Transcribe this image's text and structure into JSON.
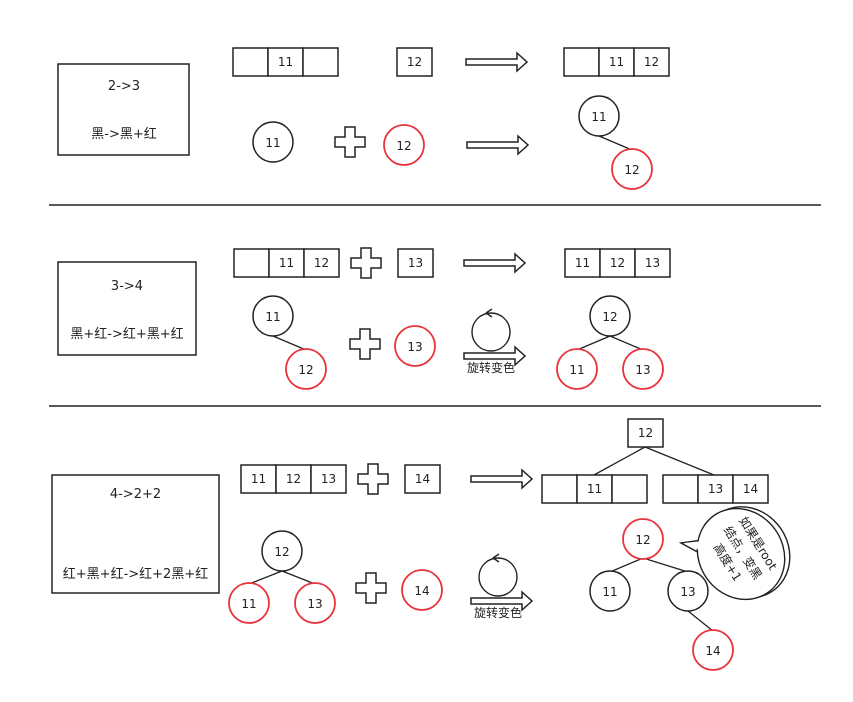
{
  "colors": {
    "black_node": "#222222",
    "red_node": "#e8333a",
    "background": "#ffffff"
  },
  "icons": {
    "plus": "plus-icon",
    "arrow": "right-arrow-icon",
    "rotate": "rotate-icon"
  },
  "section1": {
    "title": "2->3",
    "subtitle": "黑->黑+红",
    "array_before": [
      "",
      "11",
      ""
    ],
    "insert_value": "12",
    "array_after": [
      "",
      "11",
      "12"
    ],
    "tree_root": "11",
    "insert_node": "12",
    "result_root": "11",
    "result_child": "12"
  },
  "section2": {
    "title": "3->4",
    "subtitle": "黑+红->红+黑+红",
    "array_before": [
      "",
      "11",
      "12"
    ],
    "insert_value": "13",
    "array_after": [
      "11",
      "12",
      "13"
    ],
    "tree_root": "11",
    "tree_child": "12",
    "insert_node": "13",
    "rotate_label": "旋转变色",
    "result_root": "12",
    "result_left": "11",
    "result_right": "13"
  },
  "section3": {
    "title": "4->2+2",
    "subtitle": "红+黑+红->红+2黑+红",
    "array_before": [
      "11",
      "12",
      "13"
    ],
    "insert_value": "14",
    "result_top": "12",
    "result_left_array": [
      "",
      "11",
      ""
    ],
    "result_right_array": [
      "",
      "13",
      "14"
    ],
    "tree_root": "12",
    "tree_left": "11",
    "tree_right": "13",
    "insert_node": "14",
    "rotate_label": "旋转变色",
    "result_root": "12",
    "result_left": "11",
    "result_right": "13",
    "result_grandchild": "14",
    "callout_lines": [
      "如果是root",
      "结点，变黑",
      "高度+1"
    ]
  }
}
